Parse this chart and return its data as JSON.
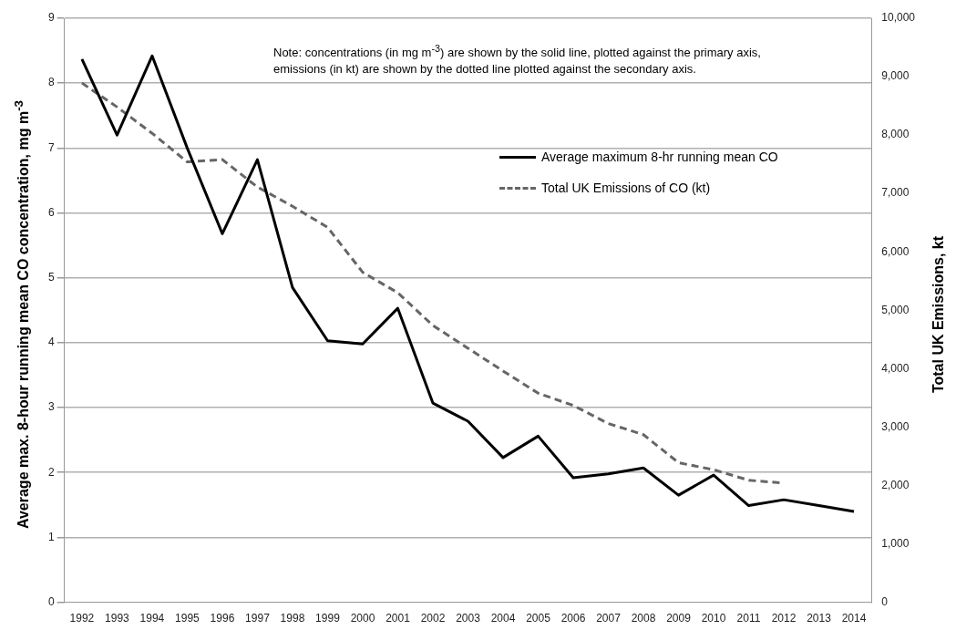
{
  "chart_data": {
    "type": "line",
    "ylabel": "Average max. 8-hour running mean CO concentration,  mg m$^{-3}$",
    "y2label": "Total UK Emissions, kt",
    "annotations": [
      "Note: concentrations (in mg m$^{-3}$) are shown by the solid line, plotted against the primary axis, emissions (in kt) are shown by the dotted line plotted against the secondary axis."
    ],
    "categories": [
      "1992",
      "1993",
      "1994",
      "1995",
      "1996",
      "1997",
      "1998",
      "1999",
      "2000",
      "2001",
      "2002",
      "2003",
      "2004",
      "2005",
      "2006",
      "2007",
      "2008",
      "2009",
      "2010",
      "2011",
      "2012",
      "2013",
      "2014"
    ],
    "series": [
      {
        "name": "Average maximum 8-hr running mean CO",
        "color": "#000000",
        "line_style": "solid",
        "values": [
          8.37,
          7.2,
          8.42,
          7.0,
          5.68,
          6.82,
          4.85,
          4.03,
          3.98,
          4.53,
          3.07,
          2.79,
          2.23,
          2.56,
          1.92,
          1.98,
          2.07,
          1.65,
          1.96,
          1.49,
          1.58,
          1.49,
          1.4
        ]
      },
      {
        "name": "Total UK Emissions of CO (kt)",
        "color": "#666666",
        "line_style": "dashed",
        "axis": "y2",
        "values": [
          8890,
          8480,
          8030,
          7540,
          7580,
          7110,
          6780,
          6420,
          5650,
          5300,
          4740,
          4350,
          3960,
          3580,
          3370,
          3060,
          2870,
          2390,
          2270,
          2090,
          2040,
          null,
          null
        ]
      }
    ],
    "ylim": [
      0,
      9
    ],
    "yticks": [
      0,
      1,
      2,
      3,
      4,
      5,
      6,
      7,
      8,
      9
    ],
    "y2lim": [
      0,
      10000
    ],
    "y2ticks": [
      {
        "value": 0,
        "label": "0"
      },
      {
        "value": 1000,
        "label": "1,000"
      },
      {
        "value": 2000,
        "label": "2,000"
      },
      {
        "value": 3000,
        "label": "3,000"
      },
      {
        "value": 4000,
        "label": "4,000"
      },
      {
        "value": 5000,
        "label": "5,000"
      },
      {
        "value": 6000,
        "label": "6,000"
      },
      {
        "value": 7000,
        "label": "7,000"
      },
      {
        "value": 8000,
        "label": "8,000"
      },
      {
        "value": 9000,
        "label": "9,000"
      },
      {
        "value": 10000,
        "label": "10,000"
      }
    ],
    "grid": "y",
    "legend": "top right",
    "marker": "none"
  }
}
